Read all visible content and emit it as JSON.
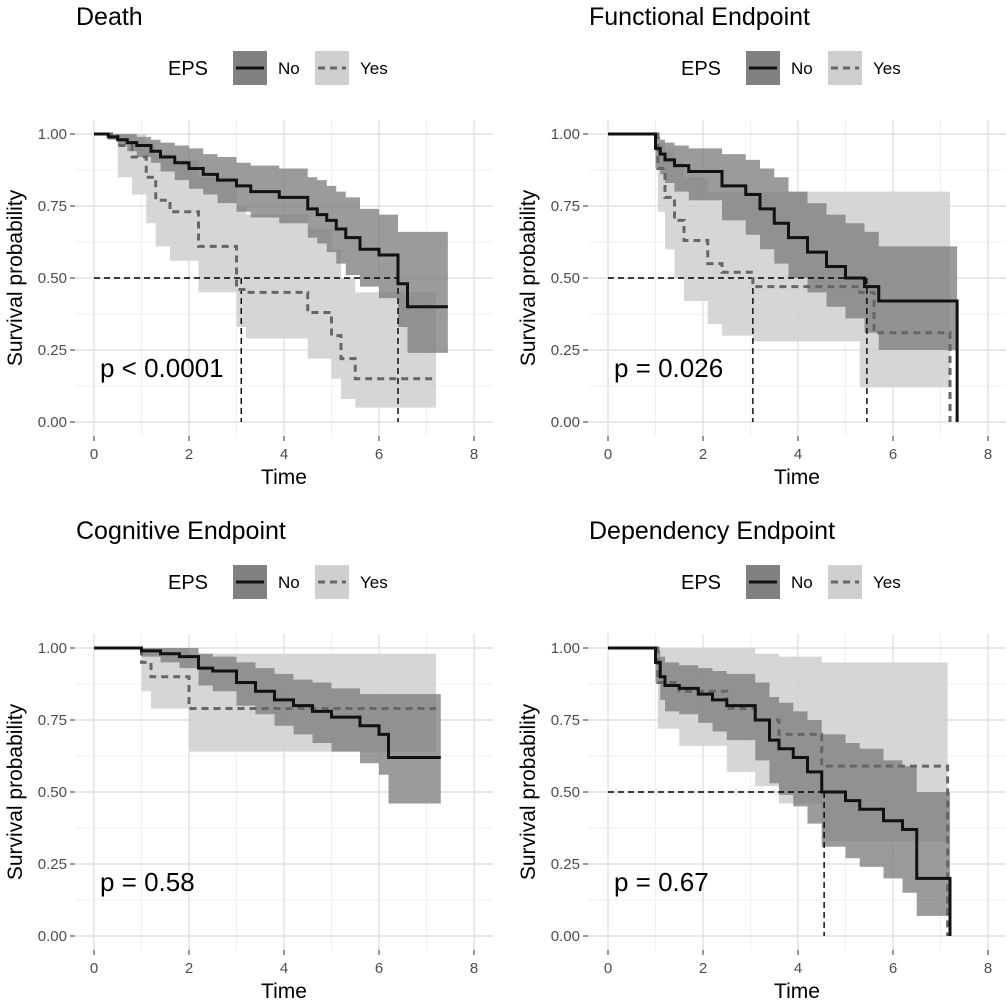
{
  "chart_data": [
    {
      "type": "line",
      "title": "Death",
      "xlabel": "Time",
      "ylabel": "Survival probability",
      "xlim": [
        0,
        8
      ],
      "ylim": [
        0,
        1
      ],
      "xticks": [
        "0",
        "2",
        "4",
        "6",
        "8"
      ],
      "yticks": [
        "0.00",
        "0.25",
        "0.50",
        "0.75",
        "1.00"
      ],
      "legend": {
        "title": "EPS",
        "labels": [
          "No",
          "Yes"
        ],
        "position": "top"
      },
      "pvalue": "p < 0.0001",
      "median_lines": [
        3.1,
        6.4
      ],
      "series": [
        {
          "name": "No",
          "style": "solid",
          "x": [
            0,
            0.3,
            0.5,
            0.7,
            0.9,
            1.2,
            1.4,
            1.7,
            2.0,
            2.3,
            2.6,
            3.0,
            3.3,
            3.9,
            4.5,
            4.7,
            4.9,
            5.1,
            5.3,
            5.6,
            6.0,
            6.4,
            6.6,
            7.45
          ],
          "y": [
            1.0,
            0.99,
            0.98,
            0.97,
            0.96,
            0.94,
            0.92,
            0.9,
            0.88,
            0.86,
            0.84,
            0.82,
            0.8,
            0.78,
            0.74,
            0.72,
            0.7,
            0.67,
            0.64,
            0.6,
            0.58,
            0.48,
            0.4,
            0.4
          ],
          "upper": [
            1.0,
            1.0,
            1.0,
            1.0,
            0.99,
            0.98,
            0.97,
            0.96,
            0.95,
            0.93,
            0.92,
            0.9,
            0.89,
            0.88,
            0.85,
            0.84,
            0.82,
            0.8,
            0.78,
            0.74,
            0.72,
            0.66,
            0.66,
            0.66
          ],
          "lower": [
            1.0,
            0.98,
            0.96,
            0.94,
            0.92,
            0.9,
            0.87,
            0.84,
            0.81,
            0.79,
            0.76,
            0.73,
            0.71,
            0.69,
            0.64,
            0.62,
            0.59,
            0.55,
            0.51,
            0.47,
            0.43,
            0.33,
            0.24,
            0.24
          ]
        },
        {
          "name": "Yes",
          "style": "dashed",
          "x": [
            0,
            0.5,
            0.8,
            1.1,
            1.3,
            1.6,
            2.2,
            3.0,
            3.2,
            4.5,
            5.0,
            5.2,
            5.5,
            7.2
          ],
          "y": [
            1.0,
            0.96,
            0.92,
            0.85,
            0.77,
            0.73,
            0.61,
            0.46,
            0.45,
            0.38,
            0.3,
            0.22,
            0.15,
            0.15
          ],
          "upper": [
            1.0,
            1.0,
            1.0,
            0.97,
            0.93,
            0.91,
            0.85,
            0.75,
            0.72,
            0.67,
            0.6,
            0.5,
            0.45,
            0.45
          ],
          "lower": [
            1.0,
            0.85,
            0.79,
            0.69,
            0.61,
            0.56,
            0.45,
            0.33,
            0.29,
            0.22,
            0.15,
            0.08,
            0.05,
            0.05
          ]
        }
      ]
    },
    {
      "type": "line",
      "title": "Functional Endpoint",
      "xlabel": "Time",
      "ylabel": "Survival probability",
      "xlim": [
        0,
        8
      ],
      "ylim": [
        0,
        1
      ],
      "xticks": [
        "0",
        "2",
        "4",
        "6",
        "8"
      ],
      "yticks": [
        "0.00",
        "0.25",
        "0.50",
        "0.75",
        "1.00"
      ],
      "legend": {
        "title": "EPS",
        "labels": [
          "No",
          "Yes"
        ],
        "position": "top"
      },
      "pvalue": "p = 0.026",
      "median_lines": [
        3.05,
        5.45
      ],
      "series": [
        {
          "name": "No",
          "style": "solid",
          "x": [
            0,
            1.0,
            1.1,
            1.2,
            1.4,
            1.7,
            2.4,
            2.9,
            3.2,
            3.5,
            3.8,
            4.2,
            4.6,
            5.0,
            5.4,
            5.7,
            7.3,
            7.35
          ],
          "y": [
            1.0,
            0.95,
            0.93,
            0.91,
            0.89,
            0.87,
            0.82,
            0.79,
            0.74,
            0.69,
            0.64,
            0.59,
            0.54,
            0.5,
            0.47,
            0.42,
            0.42,
            0.0
          ],
          "upper": [
            1.0,
            0.99,
            0.98,
            0.97,
            0.96,
            0.95,
            0.93,
            0.91,
            0.88,
            0.85,
            0.8,
            0.76,
            0.72,
            0.69,
            0.66,
            0.61,
            0.61,
            0.61
          ],
          "lower": [
            1.0,
            0.88,
            0.86,
            0.83,
            0.8,
            0.77,
            0.7,
            0.65,
            0.6,
            0.55,
            0.5,
            0.45,
            0.4,
            0.36,
            0.31,
            0.25,
            0.25,
            0.25
          ]
        },
        {
          "name": "Yes",
          "style": "dashed",
          "x": [
            0,
            1.05,
            1.2,
            1.4,
            1.6,
            2.1,
            2.4,
            3.05,
            5.3,
            5.6,
            7.15,
            7.2
          ],
          "y": [
            1.0,
            0.88,
            0.78,
            0.7,
            0.63,
            0.55,
            0.52,
            0.47,
            0.45,
            0.31,
            0.31,
            0.0
          ],
          "upper": [
            1.0,
            0.97,
            0.94,
            0.9,
            0.85,
            0.8,
            0.8,
            0.8,
            0.8,
            0.8,
            0.8,
            0.8
          ],
          "lower": [
            1.0,
            0.73,
            0.6,
            0.5,
            0.42,
            0.34,
            0.3,
            0.28,
            0.12,
            0.12,
            0.12,
            0.12
          ]
        }
      ]
    },
    {
      "type": "line",
      "title": "Cognitive Endpoint",
      "xlabel": "Time",
      "ylabel": "Survival probability",
      "xlim": [
        0,
        8
      ],
      "ylim": [
        0,
        1
      ],
      "xticks": [
        "0",
        "2",
        "4",
        "6",
        "8"
      ],
      "yticks": [
        "0.00",
        "0.25",
        "0.50",
        "0.75",
        "1.00"
      ],
      "legend": {
        "title": "EPS",
        "labels": [
          "No",
          "Yes"
        ],
        "position": "top"
      },
      "pvalue": "p = 0.58",
      "median_lines": [],
      "series": [
        {
          "name": "No",
          "style": "solid",
          "x": [
            0,
            1.0,
            1.4,
            1.8,
            2.2,
            2.5,
            3.0,
            3.4,
            3.8,
            4.2,
            4.6,
            5.0,
            5.6,
            6.0,
            6.2,
            7.3
          ],
          "y": [
            1.0,
            0.99,
            0.98,
            0.97,
            0.93,
            0.92,
            0.88,
            0.85,
            0.82,
            0.8,
            0.78,
            0.76,
            0.73,
            0.7,
            0.62,
            0.62
          ],
          "upper": [
            1.0,
            1.0,
            1.0,
            1.0,
            0.98,
            0.97,
            0.95,
            0.93,
            0.91,
            0.89,
            0.88,
            0.86,
            0.84,
            0.84,
            0.84,
            0.84
          ],
          "lower": [
            1.0,
            0.97,
            0.95,
            0.93,
            0.87,
            0.85,
            0.8,
            0.77,
            0.73,
            0.7,
            0.67,
            0.64,
            0.6,
            0.56,
            0.46,
            0.46
          ]
        },
        {
          "name": "Yes",
          "style": "dashed",
          "x": [
            0,
            1.0,
            1.2,
            2.0,
            7.2
          ],
          "y": [
            1.0,
            0.95,
            0.9,
            0.79,
            0.79
          ],
          "upper": [
            1.0,
            1.0,
            1.0,
            0.98,
            0.98
          ],
          "lower": [
            1.0,
            0.85,
            0.79,
            0.64,
            0.64
          ]
        }
      ]
    },
    {
      "type": "line",
      "title": "Dependency Endpoint",
      "xlabel": "Time",
      "ylabel": "Survival probability",
      "xlim": [
        0,
        8
      ],
      "ylim": [
        0,
        1
      ],
      "xticks": [
        "0",
        "2",
        "4",
        "6",
        "8"
      ],
      "yticks": [
        "0.00",
        "0.25",
        "0.50",
        "0.75",
        "1.00"
      ],
      "legend": {
        "title": "EPS",
        "labels": [
          "No",
          "Yes"
        ],
        "position": "top"
      },
      "pvalue": "p = 0.67",
      "median_lines": [
        4.55
      ],
      "series": [
        {
          "name": "No",
          "style": "solid",
          "x": [
            0,
            1.0,
            1.1,
            1.2,
            1.5,
            1.9,
            2.2,
            2.5,
            3.1,
            3.4,
            3.6,
            3.9,
            4.2,
            4.5,
            5.0,
            5.3,
            5.8,
            6.2,
            6.5,
            7.1,
            7.2
          ],
          "y": [
            1.0,
            0.95,
            0.9,
            0.87,
            0.86,
            0.84,
            0.82,
            0.8,
            0.75,
            0.68,
            0.65,
            0.62,
            0.57,
            0.5,
            0.47,
            0.44,
            0.4,
            0.37,
            0.2,
            0.2,
            0.0
          ],
          "upper": [
            1.0,
            0.99,
            0.97,
            0.95,
            0.94,
            0.93,
            0.92,
            0.91,
            0.88,
            0.83,
            0.81,
            0.78,
            0.75,
            0.7,
            0.67,
            0.65,
            0.61,
            0.59,
            0.5,
            0.5,
            0.5
          ],
          "lower": [
            1.0,
            0.88,
            0.82,
            0.78,
            0.77,
            0.74,
            0.71,
            0.68,
            0.61,
            0.53,
            0.49,
            0.45,
            0.39,
            0.31,
            0.27,
            0.24,
            0.2,
            0.15,
            0.07,
            0.07,
            0.07
          ]
        },
        {
          "name": "Yes",
          "style": "dashed",
          "x": [
            0,
            1.05,
            1.5,
            2.5,
            3.1,
            3.6,
            4.5,
            7.1,
            7.15
          ],
          "y": [
            1.0,
            0.88,
            0.85,
            0.79,
            0.75,
            0.7,
            0.59,
            0.59,
            0.0
          ],
          "upper": [
            1.0,
            1.0,
            1.0,
            1.0,
            0.98,
            0.97,
            0.95,
            0.95,
            0.95
          ],
          "lower": [
            1.0,
            0.72,
            0.66,
            0.57,
            0.52,
            0.46,
            0.33,
            0.33,
            0.33
          ]
        }
      ]
    }
  ]
}
